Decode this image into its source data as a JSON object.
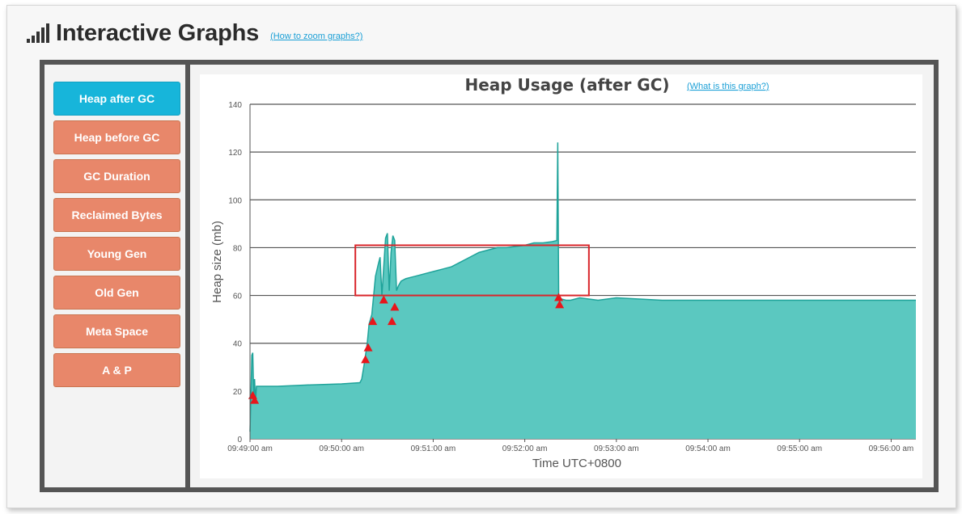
{
  "header": {
    "title": "Interactive Graphs",
    "zoom_link": "(How to zoom graphs?)"
  },
  "sidebar": {
    "items": [
      {
        "label": "Heap after GC",
        "active": true
      },
      {
        "label": "Heap before GC",
        "active": false
      },
      {
        "label": "GC Duration",
        "active": false
      },
      {
        "label": "Reclaimed Bytes",
        "active": false
      },
      {
        "label": "Young Gen",
        "active": false
      },
      {
        "label": "Old Gen",
        "active": false
      },
      {
        "label": "Meta Space",
        "active": false
      },
      {
        "label": "A & P",
        "active": false
      }
    ]
  },
  "colors": {
    "active_tab": "#17b5da",
    "inactive_tab": "#e8876a",
    "area_fill": "#5bc8c0",
    "line": "#1fa39a",
    "marker": "#e8161b",
    "highlight_box": "#d9262b"
  },
  "chart_data": {
    "type": "area",
    "title": "Heap Usage (after GC)",
    "help_link": "(What is this graph?)",
    "xlabel": "Time UTC+0800",
    "ylabel": "Heap size (mb)",
    "ylim": [
      0,
      140
    ],
    "yticks": [
      0,
      20,
      40,
      60,
      80,
      100,
      120,
      140
    ],
    "xticks": [
      "09:49:00 am",
      "09:50:00 am",
      "09:51:00 am",
      "09:52:00 am",
      "09:53:00 am",
      "09:54:00 am",
      "09:55:00 am",
      "09:56:00 am"
    ],
    "grid": true,
    "series": [
      {
        "x_minutes_from_0949": [
          0.0,
          0.01,
          0.02,
          0.03,
          0.04,
          0.05,
          0.06,
          0.07,
          0.08,
          0.09,
          0.1,
          0.11,
          0.15,
          0.3,
          0.6,
          1.0,
          1.2,
          1.22,
          1.25,
          1.28,
          1.3,
          1.33,
          1.35,
          1.37,
          1.4,
          1.42,
          1.44,
          1.46,
          1.48,
          1.5,
          1.52,
          1.54,
          1.56,
          1.58,
          1.6,
          1.62,
          1.65,
          1.7,
          1.8,
          1.9,
          2.0,
          2.1,
          2.2,
          2.3,
          2.4,
          2.5,
          2.6,
          2.7,
          2.8,
          2.9,
          3.0,
          3.1,
          3.2,
          3.3,
          3.35,
          3.36,
          3.37,
          3.38,
          3.39,
          3.4,
          3.45,
          3.5,
          3.6,
          3.8,
          4.0,
          4.5,
          5.0,
          5.5,
          6.0,
          6.5,
          7.0,
          7.27
        ],
        "y_mb": [
          3,
          18,
          35,
          36,
          18,
          25,
          15,
          22,
          22,
          22,
          22,
          22,
          22,
          22,
          22.5,
          23,
          23.5,
          25,
          32,
          40,
          48,
          52,
          60,
          68,
          73,
          76,
          60,
          72,
          84,
          86,
          62,
          78,
          85,
          83,
          62,
          64,
          66,
          67,
          68,
          69,
          70,
          71,
          72,
          74,
          76,
          78,
          79,
          80,
          80,
          80.5,
          81,
          82,
          82,
          82.5,
          83,
          124,
          60,
          58,
          59,
          58.5,
          58,
          58,
          59,
          58,
          59,
          58,
          58,
          58,
          58,
          58,
          58,
          58
        ]
      }
    ],
    "gc_markers": [
      {
        "x_minutes_from_0949": 0.03,
        "y_mb": 18
      },
      {
        "x_minutes_from_0949": 0.05,
        "y_mb": 16
      },
      {
        "x_minutes_from_0949": 1.26,
        "y_mb": 33
      },
      {
        "x_minutes_from_0949": 1.29,
        "y_mb": 38
      },
      {
        "x_minutes_from_0949": 1.34,
        "y_mb": 49
      },
      {
        "x_minutes_from_0949": 1.46,
        "y_mb": 58
      },
      {
        "x_minutes_from_0949": 1.55,
        "y_mb": 49
      },
      {
        "x_minutes_from_0949": 1.58,
        "y_mb": 55
      },
      {
        "x_minutes_from_0949": 3.37,
        "y_mb": 59
      },
      {
        "x_minutes_from_0949": 3.38,
        "y_mb": 56
      }
    ],
    "highlight_region": {
      "x_from_minutes": 1.15,
      "x_to_minutes": 3.7,
      "y_from_mb": 60,
      "y_to_mb": 81
    }
  }
}
